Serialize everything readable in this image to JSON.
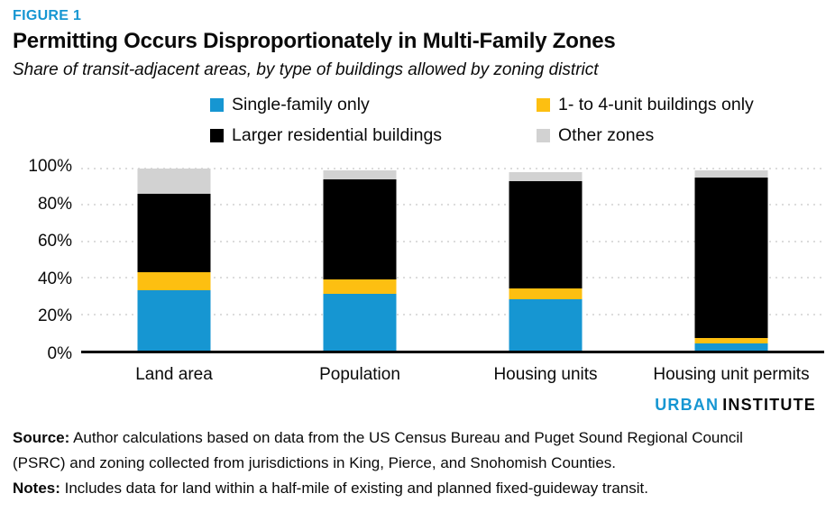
{
  "page": {
    "figure_label": "FIGURE 1",
    "title": "Permitting Occurs Disproportionately in Multi-Family Zones",
    "subtitle": "Share of transit-adjacent areas, by type of buildings allowed by zoning district",
    "branding": {
      "urban": "URBAN",
      "institute": "INSTITUTE"
    },
    "source": {
      "label": "Source:",
      "text": " Author calculations based on data from the US Census Bureau and Puget Sound Regional Council (PSRC) and zoning collected from jurisdictions in King, Pierce, and Snohomish Counties."
    },
    "notes": {
      "label": "Notes:",
      "text": " Includes data for land within a half-mile of existing and planned fixed-guideway transit."
    },
    "colors": {
      "accent_blue": "#1696d2",
      "gold": "#fdbf11",
      "black": "#000000",
      "light_gray": "#d2d2d2",
      "gridline_gray": "#dcdcdc"
    }
  },
  "chart_data": {
    "type": "bar",
    "variant": "stacked-100-percent-column",
    "title": "Permitting Occurs Disproportionately in Multi-Family Zones",
    "subtitle": "Share of transit-adjacent areas, by type of buildings allowed by zoning district",
    "categories": [
      "Land area",
      "Population",
      "Housing units",
      "Housing unit permits"
    ],
    "series": [
      {
        "name": "Single-family only",
        "color": "#1696d2",
        "values": [
          33,
          31,
          28,
          4
        ]
      },
      {
        "name": "1- to 4-unit buildings only",
        "color": "#fdbf11",
        "values": [
          10,
          8,
          6,
          3
        ]
      },
      {
        "name": "Larger residential buildings",
        "color": "#000000",
        "values": [
          43,
          55,
          59,
          88
        ]
      },
      {
        "name": "Other zones",
        "color": "#d2d2d2",
        "values": [
          14,
          5,
          5,
          4
        ]
      }
    ],
    "xlabel": "",
    "ylabel": "",
    "ylim": [
      0,
      100
    ],
    "y_tick_values": [
      0,
      20,
      40,
      60,
      80,
      100
    ],
    "y_tick_labels": [
      "0%",
      "20%",
      "40%",
      "60%",
      "80%",
      "100%"
    ],
    "grid": "horizontal-dotted",
    "legend_position": "top"
  }
}
